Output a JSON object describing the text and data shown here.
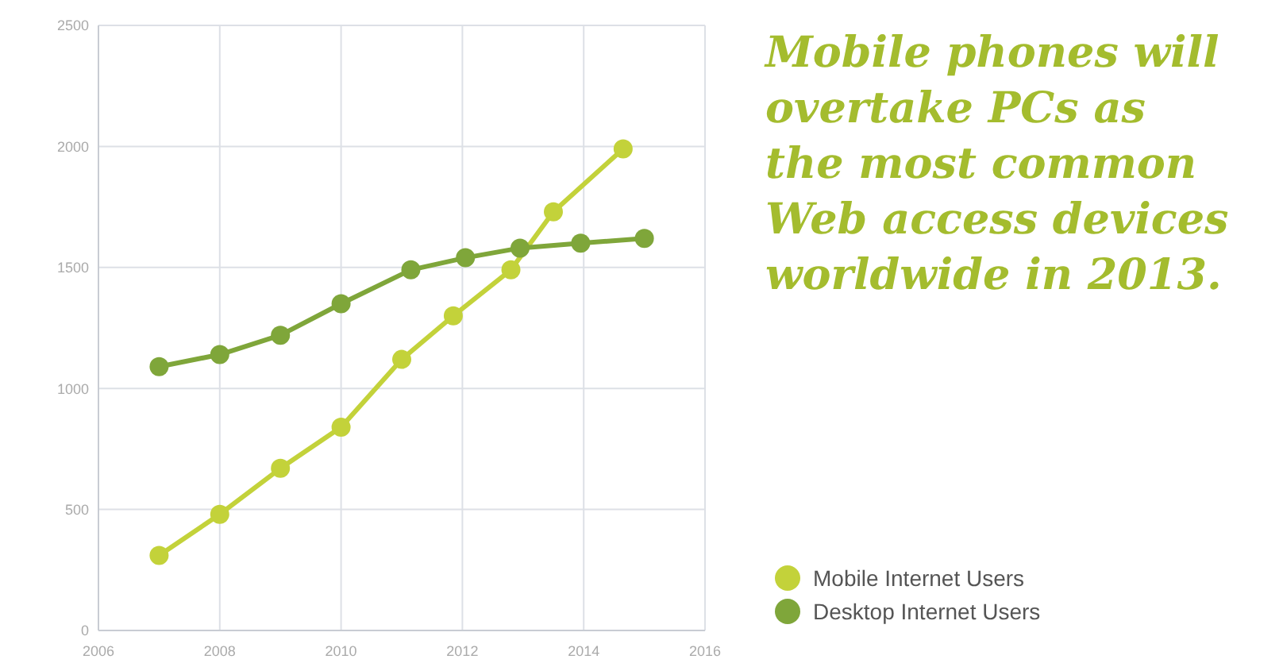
{
  "chart_data": {
    "type": "line",
    "title": "Mobile phones will\novertake PCs as\nthe most common\nWeb access devices\nworldwide in 2013.",
    "series": [
      {
        "name": "Mobile Internet Users",
        "color": "#c3d23a",
        "x": [
          2007,
          2008,
          2009,
          2010,
          2011,
          2011.85,
          2012.8,
          2013.5,
          2014.65
        ],
        "values": [
          310,
          480,
          670,
          840,
          1120,
          1300,
          1490,
          1730,
          1990
        ]
      },
      {
        "name": "Desktop Internet Users",
        "color": "#7fa63a",
        "x": [
          2007,
          2008,
          2009,
          2010,
          2011.15,
          2012.05,
          2012.95,
          2013.95,
          2015
        ],
        "values": [
          1090,
          1140,
          1220,
          1350,
          1490,
          1540,
          1580,
          1600,
          1620
        ]
      }
    ],
    "xlim": [
      2006,
      2016
    ],
    "xticks": [
      2006,
      2008,
      2010,
      2012,
      2014,
      2016
    ],
    "ylim": [
      0,
      2500
    ],
    "yticks": [
      0,
      500,
      1000,
      1500,
      2000,
      2500
    ],
    "grid": true,
    "legend": "bottom right",
    "marker": "circle",
    "line_style": "solid"
  }
}
